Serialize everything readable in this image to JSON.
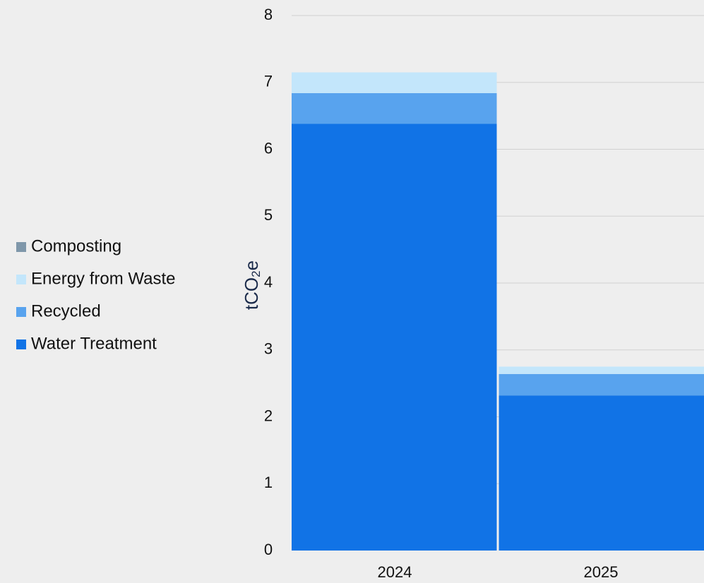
{
  "chart_data": {
    "type": "bar",
    "stacked": true,
    "categories": [
      "2024",
      "2025"
    ],
    "series": [
      {
        "name": "Water Treatment",
        "color": "#1173e6",
        "values": [
          6.38,
          2.32
        ]
      },
      {
        "name": "Recycled",
        "color": "#58a3ee",
        "values": [
          0.46,
          0.32
        ]
      },
      {
        "name": "Energy from Waste",
        "color": "#c3e6fb",
        "values": [
          0.31,
          0.11
        ]
      },
      {
        "name": "Composting",
        "color": "#7f97aa",
        "values": [
          0,
          0
        ]
      }
    ],
    "ylabel": "tCO₂e",
    "ylim": [
      0,
      8
    ],
    "yticks": [
      "0",
      "1",
      "2",
      "3",
      "4",
      "5",
      "6",
      "7",
      "8"
    ],
    "grid": true,
    "legend_position": "left",
    "legend_order": [
      "Composting",
      "Energy from Waste",
      "Recycled",
      "Water Treatment"
    ]
  }
}
